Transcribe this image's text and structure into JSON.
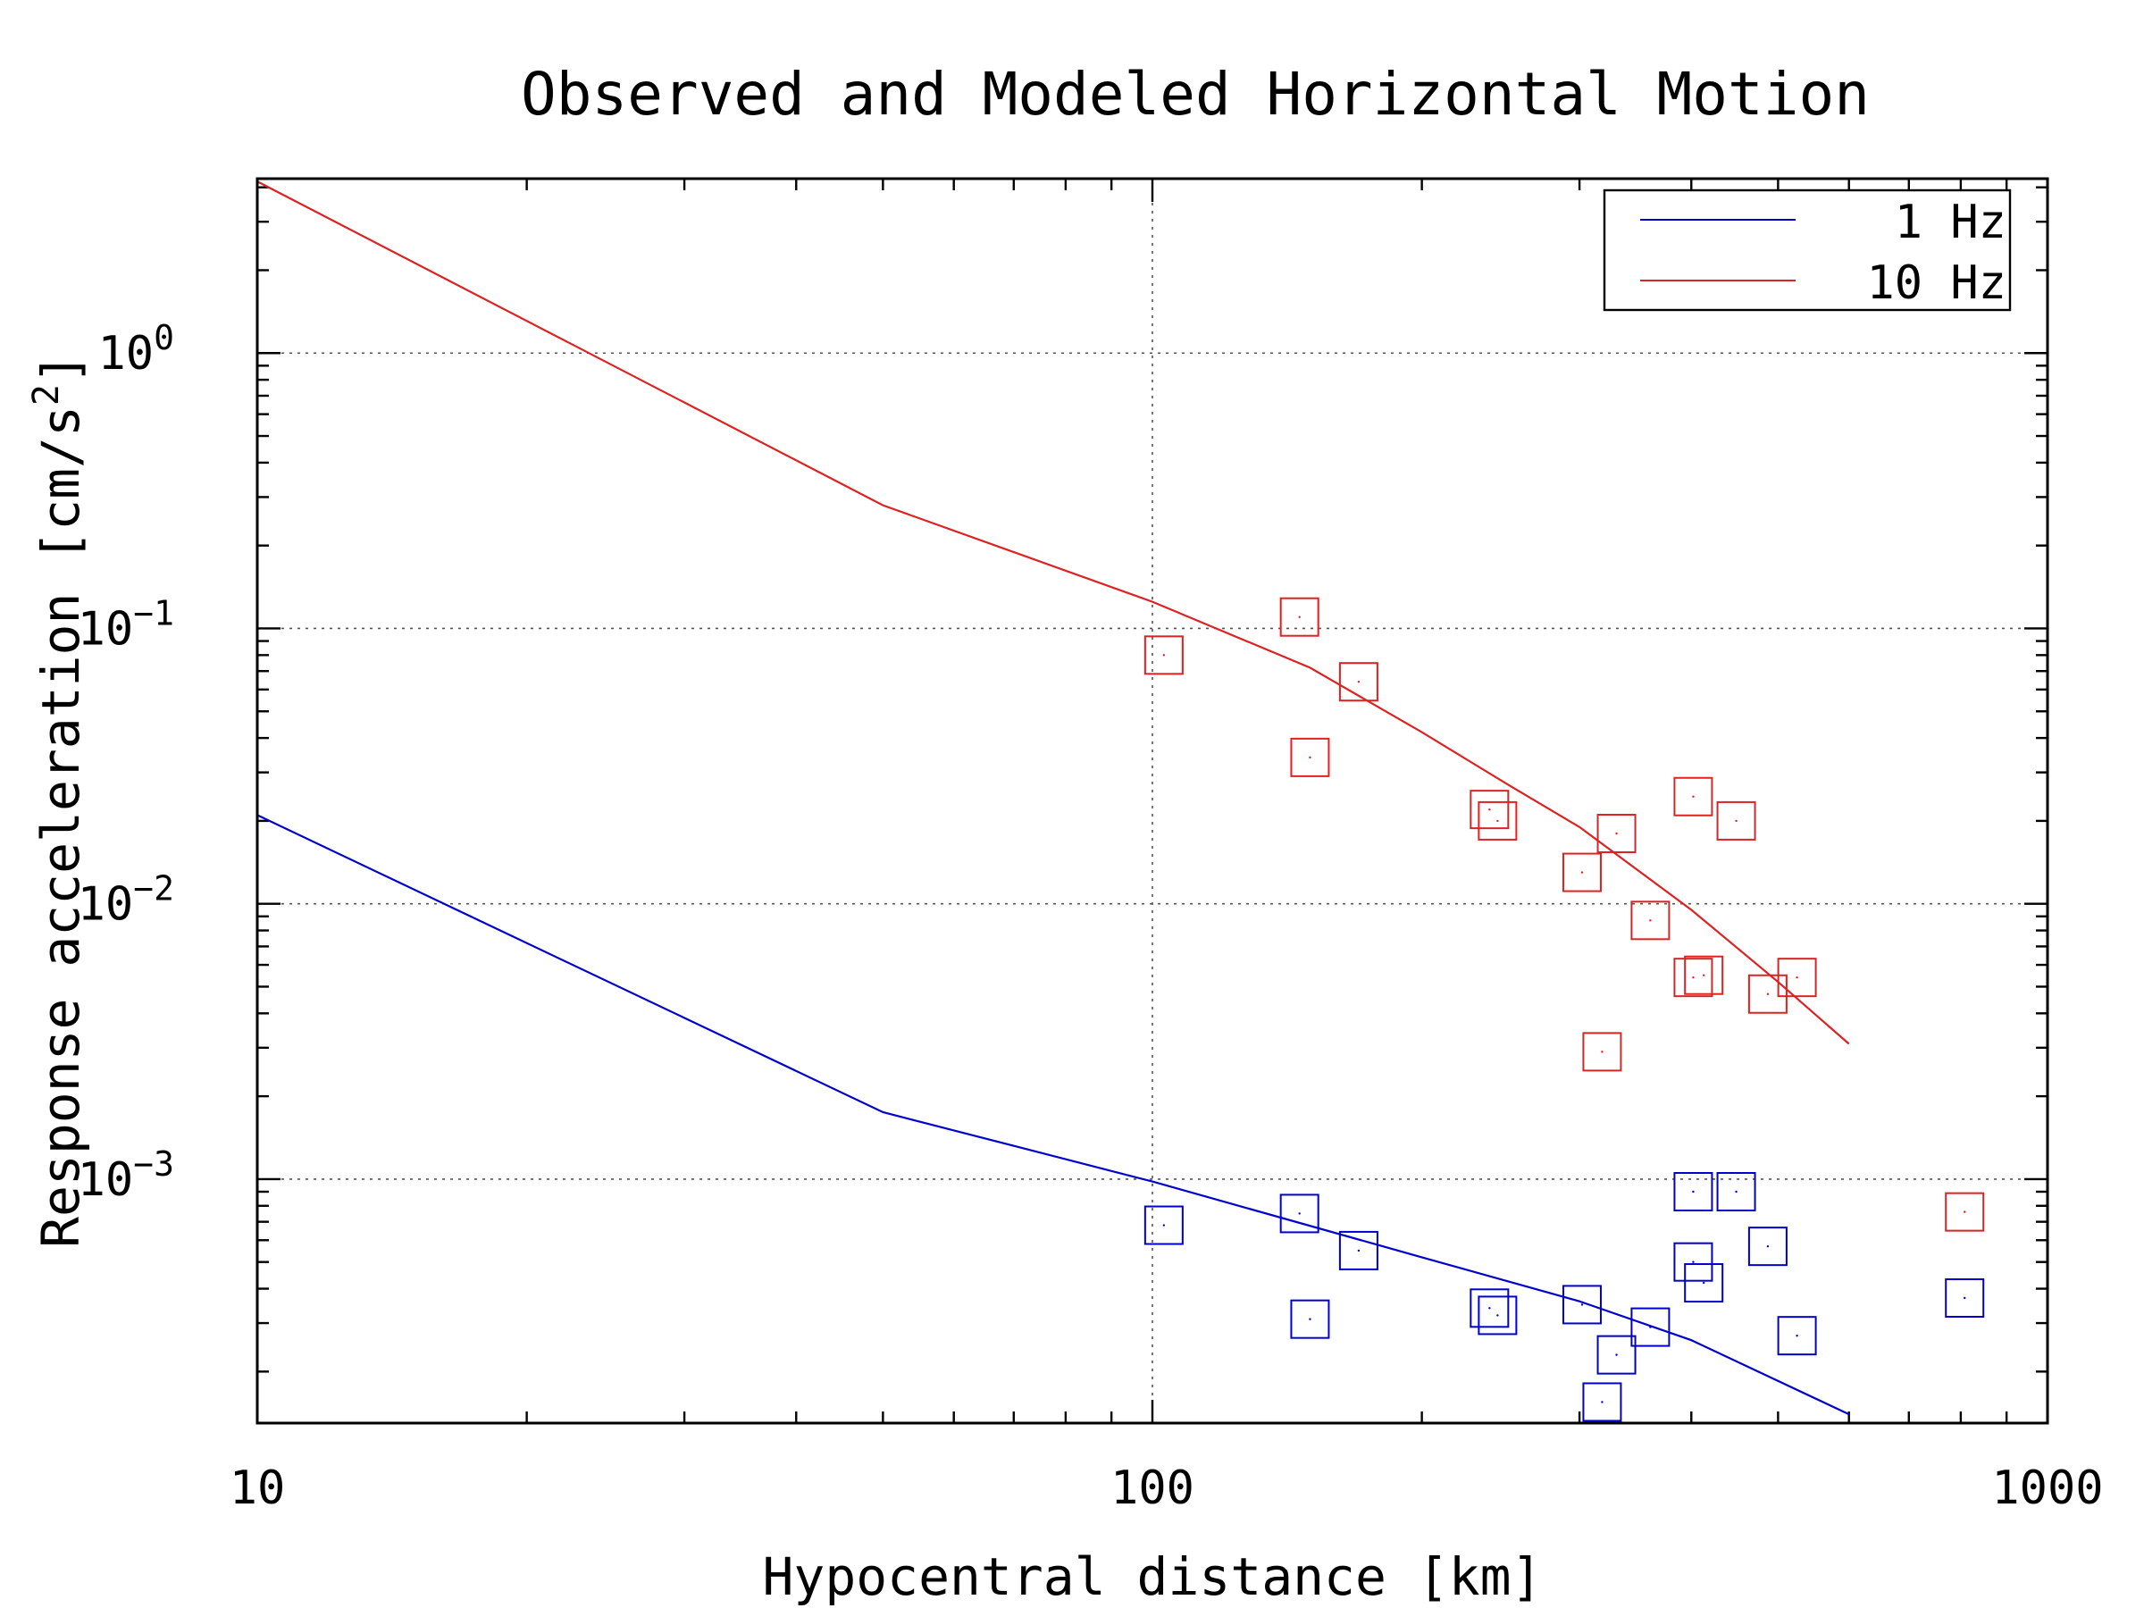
{
  "chart_data": {
    "type": "scatter",
    "title": "Observed and Modeled Horizontal Motion",
    "xlabel": "Hypocentral distance [km]",
    "ylabel": "Response acceleration [cm/s",
    "ylabel_sup": "2",
    "ylabel_close": "]",
    "x_scale": "log",
    "y_scale": "log",
    "xlim": [
      10,
      1000
    ],
    "ylim": [
      0.00013,
      4.3
    ],
    "x_ticks": [
      {
        "value": 10,
        "label": "10"
      },
      {
        "value": 100,
        "label": "100"
      },
      {
        "value": 1000,
        "label": "1000"
      }
    ],
    "y_ticks": [
      {
        "value": 1,
        "base": "10",
        "exp": "0"
      },
      {
        "value": 0.1,
        "base": "10",
        "exp": "−1"
      },
      {
        "value": 0.01,
        "base": "10",
        "exp": "−2"
      },
      {
        "value": 0.001,
        "base": "10",
        "exp": "−3"
      }
    ],
    "grid": true,
    "legend_position": "top-right",
    "series": [
      {
        "name": "1 Hz",
        "color": "#0000cc",
        "model": {
          "x": [
            10,
            50,
            100,
            200,
            300,
            400,
            600
          ],
          "y": [
            0.021,
            0.00175,
            0.00098,
            0.00052,
            0.00036,
            0.00026,
            0.00014
          ]
        },
        "observed": {
          "x": [
            103,
            146,
            150,
            170,
            238,
            243,
            302,
            318,
            330,
            360,
            402,
            402,
            413,
            449,
            487,
            525,
            808
          ],
          "y": [
            0.00068,
            0.00075,
            0.00031,
            0.00055,
            0.00034,
            0.00032,
            0.00035,
            0.000155,
            0.00023,
            0.00029,
            0.0009,
            0.0005,
            0.00042,
            0.0009,
            0.00057,
            0.00027,
            0.00037
          ]
        }
      },
      {
        "name": "10 Hz",
        "color": "#dd2222",
        "model": {
          "x": [
            10,
            50,
            100,
            150,
            200,
            250,
            300,
            400,
            500,
            600
          ],
          "y": [
            4.2,
            0.28,
            0.125,
            0.072,
            0.042,
            0.027,
            0.019,
            0.0095,
            0.0052,
            0.0031
          ]
        },
        "observed": {
          "x": [
            103,
            146,
            150,
            170,
            238,
            243,
            302,
            318,
            330,
            360,
            402,
            402,
            413,
            449,
            487,
            525,
            808
          ],
          "y": [
            0.08,
            0.11,
            0.034,
            0.064,
            0.022,
            0.02,
            0.013,
            0.0029,
            0.018,
            0.0087,
            0.0245,
            0.0054,
            0.0055,
            0.02,
            0.0047,
            0.0054,
            0.00076
          ]
        }
      }
    ]
  }
}
